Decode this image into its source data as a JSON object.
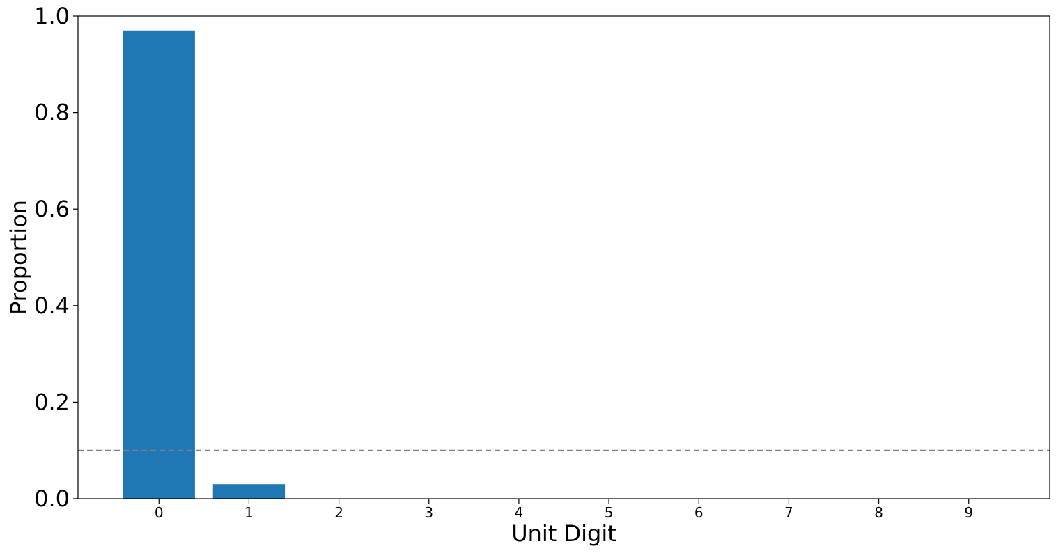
{
  "chart_data": {
    "type": "bar",
    "categories": [
      "0",
      "1",
      "2",
      "3",
      "4",
      "5",
      "6",
      "7",
      "8",
      "9"
    ],
    "values": [
      0.97,
      0.03,
      0,
      0,
      0,
      0,
      0,
      0,
      0,
      0
    ],
    "xlabel": "Unit Digit",
    "ylabel": "Proportion",
    "ylim": [
      0,
      1.0
    ],
    "yticks": [
      "0.0",
      "0.2",
      "0.4",
      "0.6",
      "0.8",
      "1.0"
    ],
    "reference_line": {
      "y": 0.1,
      "style": "dashed",
      "color": "#808080"
    },
    "bar_color": "#1f77b4",
    "grid": false
  }
}
